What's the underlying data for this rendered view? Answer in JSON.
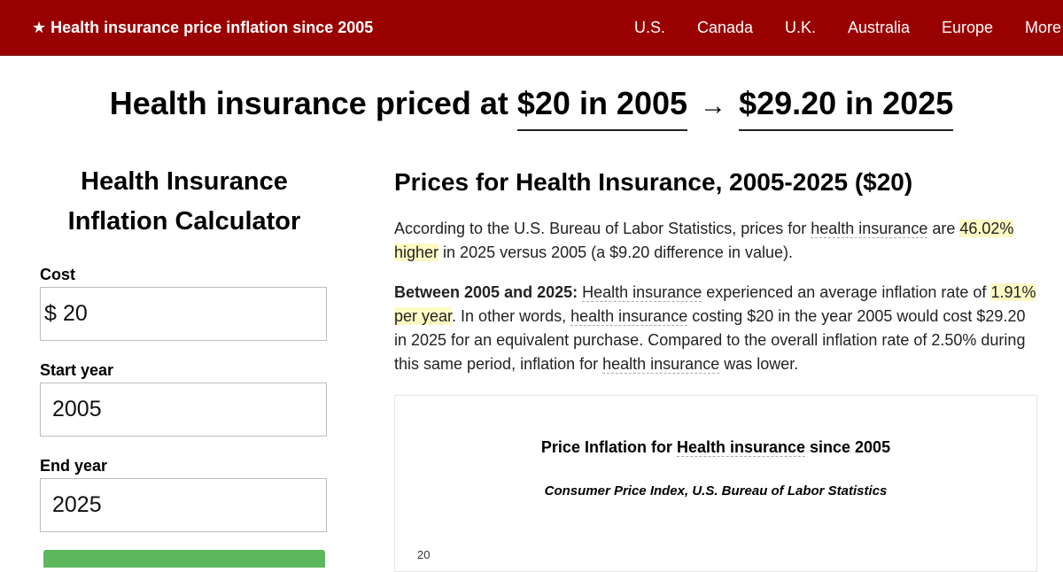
{
  "header": {
    "brand": "★ Health insurance price inflation since 2005",
    "nav": [
      "U.S.",
      "Canada",
      "U.K.",
      "Australia",
      "Europe",
      "More"
    ]
  },
  "headline": {
    "prefix": "Health insurance priced at",
    "from_amount": "$20 in 2005",
    "arrow": "→",
    "to_amount": "$29.20 in 2025"
  },
  "calculator": {
    "title_line1": "Health Insurance",
    "title_line2": "Inflation Calculator",
    "cost_label": "Cost",
    "currency_symbol": "$",
    "cost_value": "20",
    "start_label": "Start year",
    "start_value": "2005",
    "end_label": "End year",
    "end_value": "2025"
  },
  "article": {
    "title": "Prices for Health Insurance, 2005-2025 ($20)",
    "p1": {
      "t1": "According to the U.S. Bureau of Labor Statistics, prices for ",
      "link": "health insurance",
      "t2": " are ",
      "highlight": "46.02% higher",
      "t3": " in 2025 versus 2005 (a $9.20 difference in value)."
    },
    "p2": {
      "bold": "Between 2005 and 2025:",
      "link1": "Health insurance",
      "t1": " experienced an average inflation rate of ",
      "highlight": "1.91% per year",
      "t2": ". In other words, ",
      "link2": "health insurance",
      "t3": " costing $20 in the year 2005 would cost $29.20 in 2025 for an equivalent purchase. Compared to the overall inflation rate of 2.50% during this same period, inflation for ",
      "link3": "health insurance",
      "t4": " was lower."
    }
  },
  "chart": {
    "title_prefix": "Price Inflation for ",
    "title_link": "Health insurance",
    "title_suffix": " since 2005",
    "subtitle": "Consumer Price Index, U.S. Bureau of Labor Statistics",
    "y_tick_top": "20"
  },
  "colors": {
    "header_bg": "#990000",
    "highlight": "#fff9c4",
    "submit_button": "#5cb85c"
  }
}
